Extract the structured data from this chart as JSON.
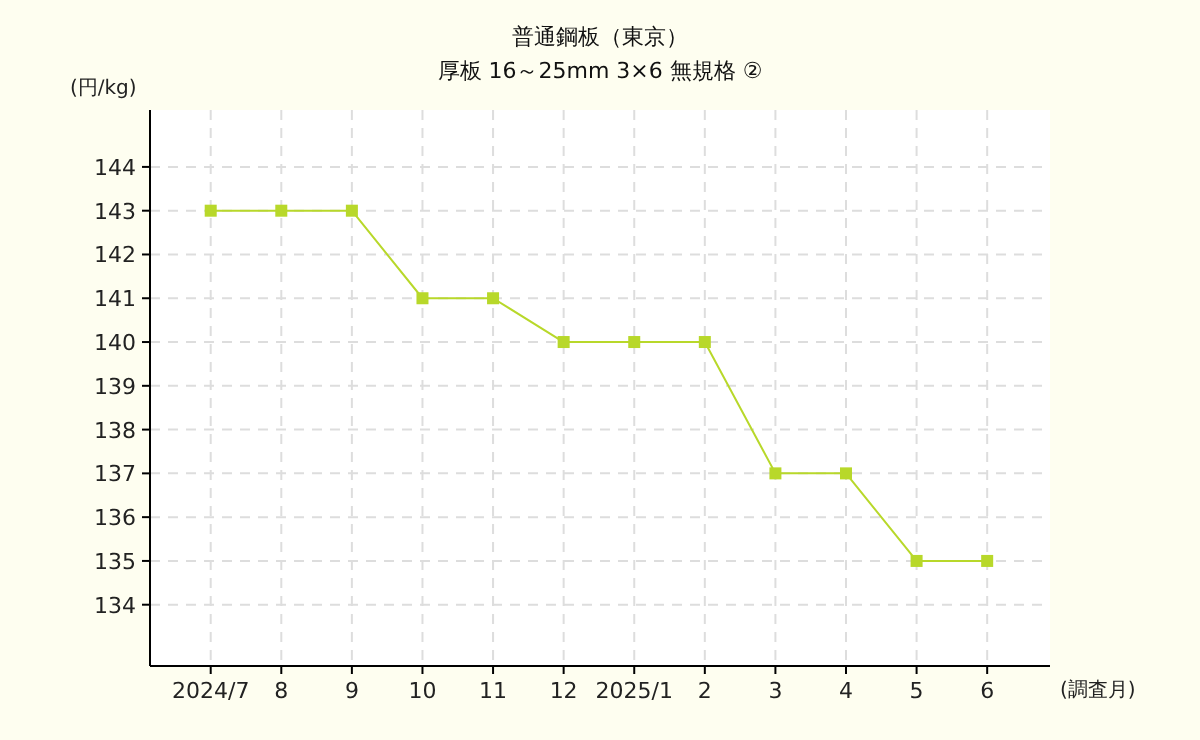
{
  "chart_data": {
    "type": "line",
    "title": "普通鋼板（東京）",
    "subtitle": "厚板 16～25mm 3×6 無規格 ②",
    "ylabel": "(円/kg)",
    "xlabel": "(調査月)",
    "categories": [
      "2024/7",
      "8",
      "9",
      "10",
      "11",
      "12",
      "2025/1",
      "2",
      "3",
      "4",
      "5",
      "6"
    ],
    "series": [
      {
        "color": "#b8d82a",
        "values": [
          143,
          143,
          143,
          141,
          141,
          140,
          140,
          140,
          137,
          137,
          135,
          135
        ]
      }
    ],
    "ylim": [
      132.6,
      145.3
    ],
    "yticks": [
      134,
      135,
      136,
      137,
      138,
      139,
      140,
      141,
      142,
      143,
      144
    ],
    "grid": true,
    "marker": "square",
    "line_style": "solid"
  }
}
